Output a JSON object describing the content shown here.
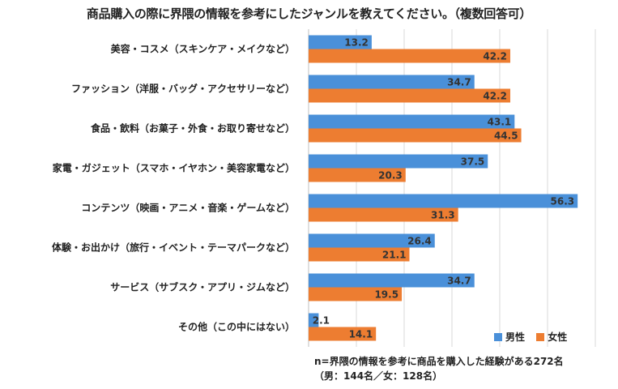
{
  "chart_data": {
    "type": "bar",
    "orientation": "horizontal",
    "title": "商品購入の際に界隈の情報を参考にしたジャンルを教えてください。（複数回答可）",
    "categories": [
      "美容・コスメ（スキンケア・メイクなど）",
      "ファッション（洋服・バッグ・アクセサリーなど）",
      "食品・飲料（お菓子・外食・お取り寄せなど）",
      "家電・ガジェット（スマホ・イヤホン・美容家電など）",
      "コンテンツ（映画・アニメ・音楽・ゲームなど）",
      "体験・お出かけ（旅行・イベント・テーマパークなど）",
      "サービス（サブスク・アプリ・ジムなど）",
      "その他（この中にはない）"
    ],
    "series": [
      {
        "name": "男性",
        "color": "#4a90d9",
        "values": [
          13.2,
          34.7,
          43.1,
          37.5,
          56.3,
          26.4,
          34.7,
          2.1
        ]
      },
      {
        "name": "女性",
        "color": "#ed7d31",
        "values": [
          42.2,
          42.2,
          44.5,
          20.3,
          31.3,
          21.1,
          19.5,
          14.1
        ]
      }
    ],
    "xlim": [
      0,
      60
    ],
    "grid": true,
    "legend_position": "bottom-right",
    "footnote": [
      "n=界隈の情報を参考に商品を購入した経験がある272名",
      "（男：144名／女：128名）"
    ]
  }
}
